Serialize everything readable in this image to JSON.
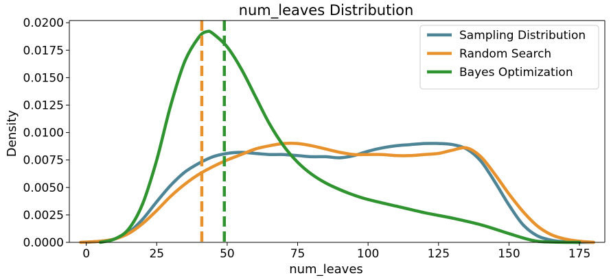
{
  "chart_data": {
    "type": "line",
    "title": "num_leaves Distribution",
    "xlabel": "num_leaves",
    "ylabel": "Density",
    "xlim": [
      -6,
      184
    ],
    "ylim": [
      0,
      0.0202
    ],
    "xticks": [
      0,
      25,
      50,
      75,
      100,
      125,
      150,
      175
    ],
    "xtick_labels": [
      "0",
      "25",
      "50",
      "75",
      "100",
      "125",
      "150",
      "175"
    ],
    "yticks": [
      0,
      0.0025,
      0.005,
      0.0075,
      0.01,
      0.0125,
      0.015,
      0.0175,
      0.02
    ],
    "ytick_labels": [
      "0.0000",
      "0.0025",
      "0.0050",
      "0.0075",
      "0.0100",
      "0.0125",
      "0.0150",
      "0.0175",
      "0.0200"
    ],
    "grid": false,
    "legend_position": "top-right",
    "series": [
      {
        "name": "Sampling Distribution",
        "color": "#4e8596",
        "x": [
          0,
          5,
          10,
          15,
          20,
          25,
          30,
          35,
          40,
          45,
          50,
          55,
          60,
          65,
          70,
          75,
          80,
          85,
          90,
          95,
          100,
          105,
          110,
          115,
          120,
          125,
          130,
          135,
          140,
          145,
          150,
          155,
          160,
          165,
          170,
          175,
          180
        ],
        "y": [
          0.0,
          0.0001,
          0.0003,
          0.0009,
          0.0021,
          0.0037,
          0.0052,
          0.0064,
          0.0072,
          0.0078,
          0.0081,
          0.0082,
          0.0081,
          0.008,
          0.008,
          0.0079,
          0.0078,
          0.0078,
          0.0077,
          0.0079,
          0.0083,
          0.0086,
          0.0088,
          0.0089,
          0.009,
          0.009,
          0.0089,
          0.0085,
          0.0074,
          0.0055,
          0.0034,
          0.0016,
          0.0006,
          0.0002,
          5e-05,
          0.0,
          0.0
        ]
      },
      {
        "name": "Random Search",
        "color": "#e8922e",
        "x": [
          -2,
          5,
          10,
          15,
          20,
          25,
          30,
          35,
          40,
          45,
          50,
          55,
          60,
          65,
          70,
          75,
          80,
          85,
          90,
          95,
          100,
          105,
          110,
          115,
          120,
          125,
          130,
          135,
          140,
          145,
          150,
          155,
          160,
          165,
          170,
          175,
          180
        ],
        "y": [
          0.0,
          0.0001,
          0.0003,
          0.0008,
          0.0017,
          0.0029,
          0.0042,
          0.0053,
          0.0062,
          0.0069,
          0.0075,
          0.008,
          0.0085,
          0.0088,
          0.009,
          0.009,
          0.0088,
          0.0085,
          0.0082,
          0.008,
          0.008,
          0.008,
          0.0079,
          0.0079,
          0.008,
          0.0081,
          0.0084,
          0.0086,
          0.0078,
          0.0062,
          0.0044,
          0.0028,
          0.0015,
          0.0007,
          0.0003,
          0.0001,
          0.0
        ]
      },
      {
        "name": "Bayes Optimization",
        "color": "#2f932f",
        "x": [
          5,
          10,
          15,
          20,
          25,
          30,
          35,
          40,
          43,
          45,
          50,
          55,
          60,
          65,
          70,
          75,
          80,
          85,
          90,
          95,
          100,
          110,
          120,
          130,
          140,
          150,
          155,
          160,
          165,
          170,
          175
        ],
        "y": [
          0.0,
          0.0003,
          0.0012,
          0.0035,
          0.0075,
          0.0125,
          0.0165,
          0.0187,
          0.0192,
          0.019,
          0.0178,
          0.0158,
          0.0133,
          0.0108,
          0.0088,
          0.0073,
          0.0062,
          0.0054,
          0.0048,
          0.0043,
          0.0039,
          0.0033,
          0.0027,
          0.0022,
          0.0016,
          0.0008,
          0.0004,
          0.0001,
          3e-05,
          0.0,
          0.0
        ]
      }
    ],
    "vlines": [
      {
        "series": "Random Search",
        "x": 41,
        "color": "#e8922e",
        "style": "dashed"
      },
      {
        "series": "Bayes Optimization",
        "x": 49,
        "color": "#2f932f",
        "style": "dashed"
      }
    ]
  }
}
